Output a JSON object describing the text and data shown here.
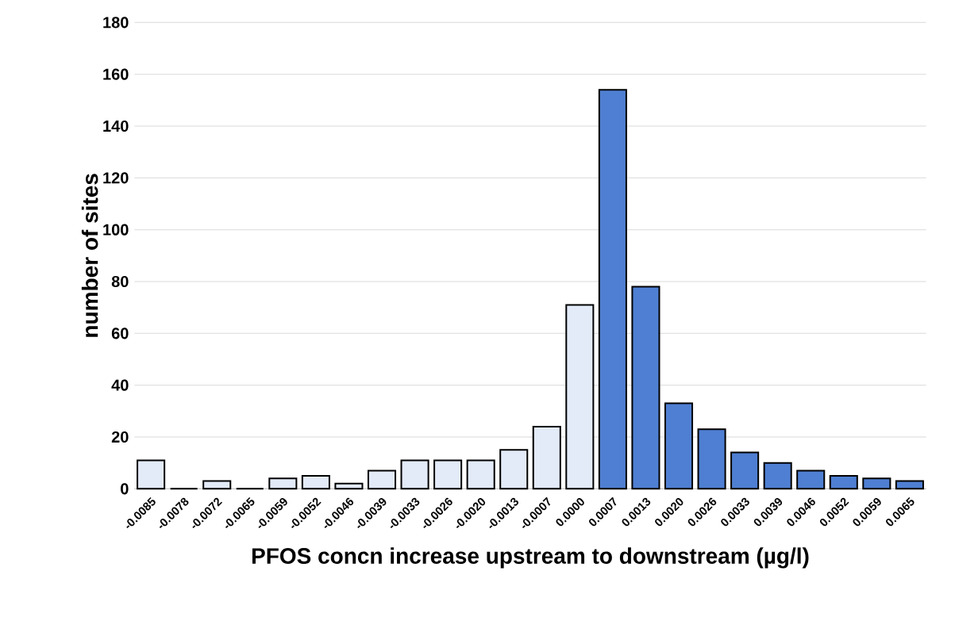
{
  "chart_data": {
    "type": "bar",
    "xlabel": "PFOS concn increase upstream to downstream  (µg/l)",
    "ylabel": "number of sites",
    "categories": [
      "-0.0085",
      "-0.0078",
      "-0.0072",
      "-0.0065",
      "-0.0059",
      "-0.0052",
      "-0.0046",
      "-0.0039",
      "-0.0033",
      "-0.0026",
      "-0.0020",
      "-0.0013",
      "-0.0007",
      "0.0000",
      "0.0007",
      "0.0013",
      "0.0020",
      "0.0026",
      "0.0033",
      "0.0039",
      "0.0046",
      "0.0052",
      "0.0059",
      "0.0065"
    ],
    "values": [
      11,
      0,
      3,
      0,
      4,
      5,
      2,
      7,
      11,
      11,
      11,
      15,
      24,
      71,
      154,
      78,
      33,
      23,
      14,
      10,
      7,
      5,
      4,
      3
    ],
    "colors": [
      "#e3eaf8",
      "#e3eaf8",
      "#e3eaf8",
      "#e3eaf8",
      "#e3eaf8",
      "#e3eaf8",
      "#e3eaf8",
      "#e3eaf8",
      "#e3eaf8",
      "#e3eaf8",
      "#e3eaf8",
      "#e3eaf8",
      "#e3eaf8",
      "#e3eaf8",
      "#4f7fd2",
      "#4f7fd2",
      "#4f7fd2",
      "#4f7fd2",
      "#4f7fd2",
      "#4f7fd2",
      "#4f7fd2",
      "#4f7fd2",
      "#4f7fd2",
      "#4f7fd2"
    ],
    "ylim": [
      0,
      180
    ],
    "yticks": [
      0,
      20,
      40,
      60,
      80,
      100,
      120,
      140,
      160,
      180
    ],
    "grid": "y"
  }
}
